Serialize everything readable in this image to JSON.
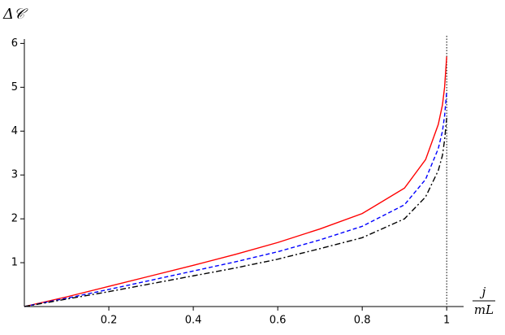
{
  "chart_data": {
    "type": "line",
    "ylabel": "Δ𝒞",
    "xlabel": {
      "numerator": "j",
      "denominator": "mL"
    },
    "x": [
      0,
      0.1,
      0.2,
      0.3,
      0.4,
      0.5,
      0.6,
      0.7,
      0.8,
      0.9,
      0.95,
      0.98,
      0.99,
      0.995,
      1
    ],
    "series": [
      {
        "color": "#ff0000",
        "style": "solid",
        "values": [
          0,
          0.22,
          0.46,
          0.7,
          0.94,
          1.19,
          1.46,
          1.77,
          2.12,
          2.7,
          3.35,
          4.15,
          4.6,
          5.0,
          5.7
        ]
      },
      {
        "color": "#0000ff",
        "style": "dashed",
        "values": [
          0,
          0.19,
          0.39,
          0.6,
          0.81,
          1.02,
          1.25,
          1.52,
          1.83,
          2.32,
          2.9,
          3.6,
          4.0,
          4.35,
          4.9
        ]
      },
      {
        "color": "#000000",
        "style": "dashdot",
        "values": [
          0,
          0.17,
          0.34,
          0.52,
          0.7,
          0.88,
          1.08,
          1.32,
          1.57,
          2.0,
          2.5,
          3.1,
          3.45,
          3.8,
          4.3
        ]
      }
    ],
    "vline": 1,
    "xlim": [
      0,
      1.04
    ],
    "ylim": [
      0,
      6.1
    ],
    "xticks": [
      0.2,
      0.4,
      0.6,
      0.8,
      1
    ],
    "yticks": [
      1,
      2,
      3,
      4,
      5,
      6
    ]
  }
}
